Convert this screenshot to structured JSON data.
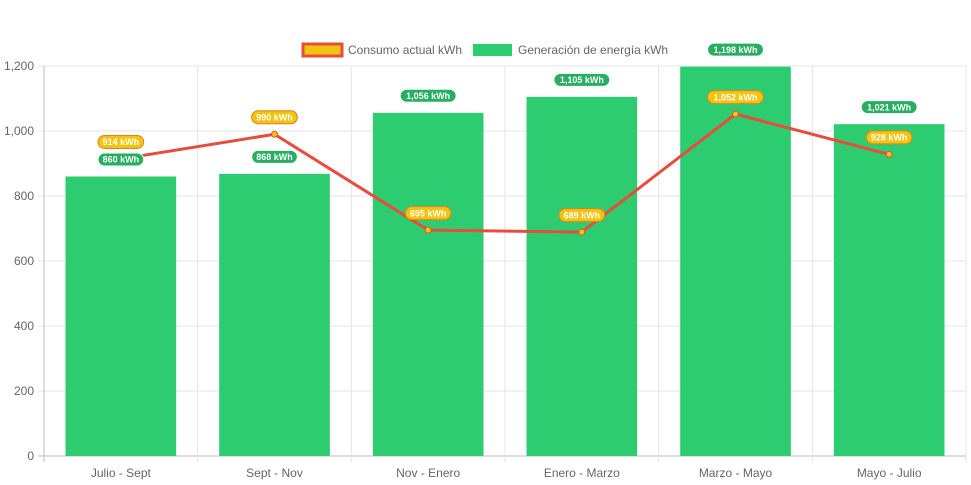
{
  "chart_data": {
    "type": "bar",
    "categories": [
      "Julio - Sept",
      "Sept - Nov",
      "Nov - Enero",
      "Enero - Marzo",
      "Marzo - Mayo",
      "Mayo - Julio"
    ],
    "series": [
      {
        "name": "Consumo actual kWh",
        "type": "line",
        "values": [
          914,
          990,
          695,
          689,
          1052,
          928
        ],
        "labels": [
          "914 kWh",
          "990 kWh",
          "695 kWh",
          "689 kWh",
          "1,052 kWh",
          "928 kWh"
        ],
        "color": "#e74c3c",
        "fill_color": "#f1c40f"
      },
      {
        "name": "Generación de energía kWh",
        "type": "bar",
        "values": [
          860,
          868,
          1056,
          1105,
          1198,
          1021
        ],
        "labels": [
          "860 kWh",
          "868 kWh",
          "1,056 kWh",
          "1,105 kWh",
          "1,198 kWh",
          "1,021 kWh"
        ],
        "color": "#2ecc71"
      }
    ],
    "ylim": [
      0,
      1200
    ],
    "yticks": [
      0,
      200,
      400,
      600,
      800,
      1000,
      1200
    ],
    "ytick_labels": [
      "0",
      "200",
      "400",
      "600",
      "800",
      "1,000",
      "1,200"
    ],
    "grid": true,
    "legend_position": "top-center"
  }
}
